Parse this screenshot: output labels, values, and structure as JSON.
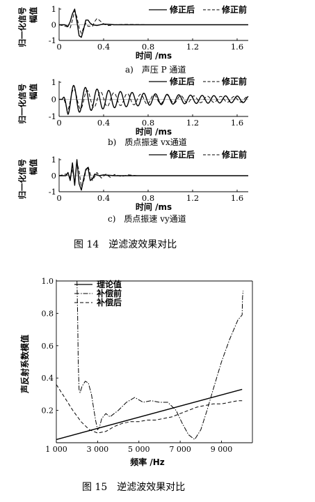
{
  "fig14": {
    "caption": "图 14　逆滤波效果对比",
    "ylabel_line1": "归一化信号",
    "ylabel_line2": "幅值",
    "xlabel": "时间 /ms",
    "legend_solid": "修正后",
    "legend_dashed": "修正前",
    "panels": [
      {
        "sub": "a)　声压 P 通道"
      },
      {
        "sub": "b)　质点振速 vx通道"
      },
      {
        "sub": "c)　质点振速 vy通道"
      }
    ]
  },
  "fig15": {
    "caption": "图 15　逆滤波效果对比",
    "ylabel": "声反射系数模值",
    "xlabel": "频率 /Hz",
    "legend": [
      "理论值",
      "补偿前",
      "补偿后"
    ]
  },
  "chart_data": [
    {
      "type": "line",
      "title": "a)　声压 P 通道",
      "xlabel": "时间 /ms",
      "ylabel": "归一化信号幅值",
      "xlim": [
        0,
        1.7
      ],
      "ylim": [
        -1,
        1
      ],
      "x_ticks": [
        0,
        0.4,
        0.8,
        1.2,
        1.6
      ],
      "y_ticks": [
        -1,
        0,
        1
      ],
      "legend_position": "top-right",
      "series": [
        {
          "name": "修正后",
          "style": "solid",
          "x": [
            0,
            0.05,
            0.08,
            0.1,
            0.12,
            0.14,
            0.16,
            0.18,
            0.2,
            0.22,
            0.24,
            0.26,
            0.28,
            0.3,
            0.34,
            0.4,
            0.5,
            0.6,
            0.8,
            1.0,
            1.2,
            1.4,
            1.6,
            1.7
          ],
          "y": [
            0,
            0,
            -0.1,
            0.2,
            0.7,
            1.0,
            0.2,
            -0.7,
            -0.8,
            -0.3,
            0.3,
            0.3,
            0.1,
            0,
            -0.05,
            0.05,
            0,
            0,
            0,
            0,
            0,
            0,
            0,
            0
          ]
        },
        {
          "name": "修正前",
          "style": "dashed",
          "x": [
            0,
            0.06,
            0.1,
            0.12,
            0.14,
            0.16,
            0.18,
            0.2,
            0.22,
            0.24,
            0.26,
            0.3,
            0.32,
            0.34,
            0.36,
            0.4,
            0.44,
            0.5,
            0.6,
            0.8,
            1.0,
            1.2,
            1.4,
            1.6,
            1.7
          ],
          "y": [
            0,
            -0.1,
            -0.2,
            0.3,
            0.9,
            0.5,
            -0.2,
            -0.55,
            -0.2,
            0.1,
            -0.1,
            -0.1,
            0.2,
            0.4,
            0.3,
            0.05,
            -0.05,
            0,
            0.02,
            0,
            0,
            0,
            0,
            0,
            0
          ]
        }
      ]
    },
    {
      "type": "line",
      "title": "b)　质点振速 vx通道",
      "xlabel": "时间 /ms",
      "ylabel": "归一化信号幅值",
      "xlim": [
        0,
        1.7
      ],
      "ylim": [
        -1,
        1
      ],
      "x_ticks": [
        0,
        0.4,
        0.8,
        1.2,
        1.6
      ],
      "y_ticks": [
        -1,
        0,
        1
      ],
      "legend_position": "top-right",
      "series": [
        {
          "name": "修正后",
          "style": "solid",
          "osc": true,
          "period": 0.105,
          "amp_start": 0.95,
          "amp_end": 0.15,
          "decay": 0.55,
          "phase": 0
        },
        {
          "name": "修正前",
          "style": "dashed",
          "osc": true,
          "period": 0.12,
          "amp_start": 0.7,
          "amp_end": 0.12,
          "decay": 0.6,
          "phase": 0.9
        }
      ]
    },
    {
      "type": "line",
      "title": "c)　质点振速 vy通道",
      "xlabel": "时间 /ms",
      "ylabel": "归一化信号幅值",
      "xlim": [
        0,
        1.7
      ],
      "ylim": [
        -1,
        1
      ],
      "x_ticks": [
        0,
        0.4,
        0.8,
        1.2,
        1.6
      ],
      "y_ticks": [
        -1,
        0,
        1
      ],
      "legend_position": "top-right",
      "series": [
        {
          "name": "修正后",
          "style": "solid",
          "x": [
            0,
            0.06,
            0.08,
            0.1,
            0.12,
            0.14,
            0.16,
            0.18,
            0.2,
            0.22,
            0.24,
            0.26,
            0.28,
            0.3,
            0.32,
            0.36,
            0.4,
            0.5,
            0.6,
            0.8,
            1.0,
            1.2,
            1.4,
            1.6,
            1.7
          ],
          "y": [
            0,
            0,
            0.2,
            -0.3,
            0.8,
            -0.6,
            1.0,
            -0.5,
            -0.9,
            -0.2,
            0.4,
            0.5,
            -0.3,
            -0.2,
            0.1,
            0,
            0.05,
            0,
            0,
            0,
            0,
            0,
            0,
            0,
            0
          ]
        },
        {
          "name": "修正前",
          "style": "dashed",
          "x": [
            0,
            0.06,
            0.1,
            0.12,
            0.14,
            0.16,
            0.18,
            0.2,
            0.22,
            0.24,
            0.26,
            0.28,
            0.3,
            0.34,
            0.38,
            0.42,
            0.46,
            0.5,
            0.56,
            0.62,
            0.7,
            0.8,
            1.0,
            1.2,
            1.4,
            1.6,
            1.7
          ],
          "y": [
            0,
            0.1,
            -0.1,
            0.4,
            -0.4,
            0.8,
            0.3,
            -0.7,
            -0.4,
            0.3,
            0.6,
            0.1,
            -0.3,
            0.2,
            -0.15,
            0.1,
            -0.1,
            0.08,
            -0.05,
            0.05,
            0,
            0,
            0,
            0,
            0,
            0,
            0
          ]
        }
      ]
    },
    {
      "type": "line",
      "title": "",
      "xlabel": "频率 /Hz",
      "ylabel": "声反射系数模值",
      "xlim": [
        1000,
        10500
      ],
      "ylim": [
        0,
        1.0
      ],
      "x_ticks": [
        1000,
        3000,
        5000,
        7000,
        9000
      ],
      "x_tick_labels": [
        "1 000",
        "3 000",
        "5 000",
        "7 000",
        "9 000"
      ],
      "y_ticks": [
        0.2,
        0.4,
        0.6,
        0.8,
        1.0
      ],
      "legend_position": "top-left",
      "series": [
        {
          "name": "理论值",
          "style": "solid",
          "x": [
            1000,
            10000
          ],
          "y": [
            0.02,
            0.33
          ]
        },
        {
          "name": "补偿前",
          "style": "dashdot",
          "x": [
            2000,
            2030,
            2060,
            2100,
            2150,
            2250,
            2400,
            2550,
            2700,
            2800,
            2900,
            3000,
            3100,
            3200,
            3400,
            3600,
            3800,
            4000,
            4400,
            4800,
            5200,
            5600,
            6000,
            6400,
            6800,
            7100,
            7400,
            7700,
            8000,
            8300,
            8600,
            9000,
            9400,
            9800,
            10000,
            10020,
            10050
          ],
          "y": [
            1.0,
            0.8,
            0.5,
            0.33,
            0.31,
            0.35,
            0.38,
            0.37,
            0.3,
            0.22,
            0.14,
            0.08,
            0.1,
            0.15,
            0.18,
            0.16,
            0.18,
            0.2,
            0.25,
            0.28,
            0.25,
            0.26,
            0.25,
            0.25,
            0.2,
            0.12,
            0.05,
            0.02,
            0.08,
            0.2,
            0.33,
            0.5,
            0.64,
            0.76,
            0.79,
            0.9,
            0.94
          ]
        },
        {
          "name": "补偿后",
          "style": "dashed",
          "x": [
            1000,
            1400,
            1800,
            2200,
            2600,
            3000,
            3400,
            3800,
            4200,
            4600,
            5000,
            5400,
            5800,
            6200,
            6600,
            7000,
            7400,
            7800,
            8200,
            8600,
            9000,
            9400,
            9800,
            10000
          ],
          "y": [
            0.36,
            0.28,
            0.2,
            0.13,
            0.08,
            0.06,
            0.07,
            0.1,
            0.12,
            0.13,
            0.13,
            0.14,
            0.14,
            0.15,
            0.16,
            0.18,
            0.2,
            0.22,
            0.23,
            0.24,
            0.24,
            0.25,
            0.26,
            0.26
          ]
        }
      ]
    }
  ]
}
